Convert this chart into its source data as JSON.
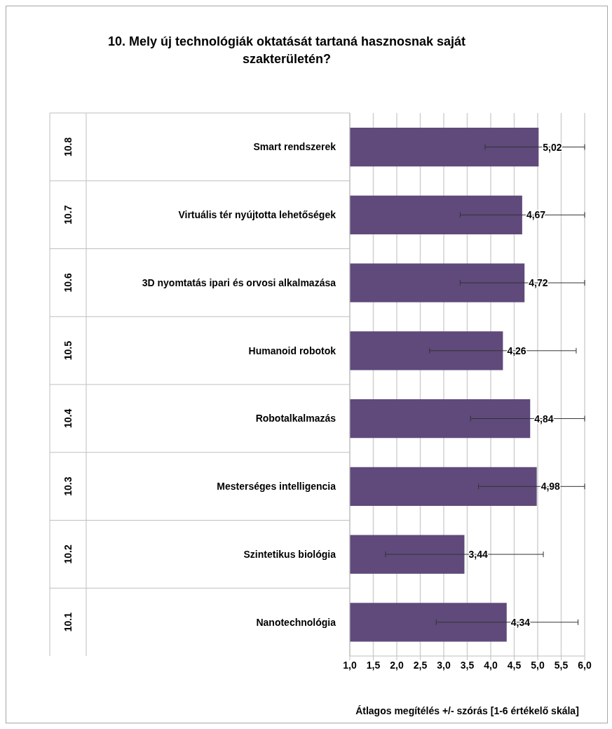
{
  "chart_data": {
    "type": "bar",
    "orientation": "horizontal",
    "title": "10. Mely új technológiák oktatását tartaná hasznosnak saját szakterületén?",
    "xlabel": "Átlagos megítélés +/- szórás [1-6 értékelő skála]",
    "categories": [
      "Smart rendszerek",
      "Virtuális tér nyújtotta lehetőségek",
      "3D nyomtatás ipari és orvosi alkalmazása",
      "Humanoid robotok",
      "Robotalkalmazás",
      "Mesterséges intelligencia",
      "Szintetikus biológia",
      "Nanotechnológia"
    ],
    "values": [
      5.02,
      4.67,
      4.72,
      4.26,
      4.84,
      4.98,
      3.44,
      4.34
    ],
    "value_labels": [
      "5,02",
      "4,67",
      "4,72",
      "4,26",
      "4,84",
      "4,98",
      "3,44",
      "4,34"
    ],
    "errors": [
      [
        3.88,
        6.0
      ],
      [
        3.35,
        6.0
      ],
      [
        3.35,
        6.0
      ],
      [
        2.7,
        5.82
      ],
      [
        3.57,
        6.0
      ],
      [
        3.74,
        6.0
      ],
      [
        1.76,
        5.12
      ],
      [
        2.84,
        5.86
      ]
    ],
    "color": "#5f4a7b",
    "xlim": [
      1,
      6
    ],
    "xticks": [
      {
        "value": 1,
        "label": "1,0"
      },
      {
        "value": 1.5,
        "label": "1,5"
      },
      {
        "value": 2,
        "label": "2,0"
      },
      {
        "value": 2.5,
        "label": "2,5"
      },
      {
        "value": 3,
        "label": "3,0"
      },
      {
        "value": 3.5,
        "label": "3,5"
      },
      {
        "value": 4,
        "label": "4,0"
      },
      {
        "value": 4.5,
        "label": "4,5"
      },
      {
        "value": 5,
        "label": "5,0"
      },
      {
        "value": 5.5,
        "label": "5,5"
      },
      {
        "value": 6,
        "label": "6,0"
      }
    ],
    "grid": "x",
    "annotations": [
      "10.8",
      "10.7",
      "10.6",
      "10.5",
      "10.4",
      "10.3",
      "10.2",
      "10.1"
    ]
  }
}
